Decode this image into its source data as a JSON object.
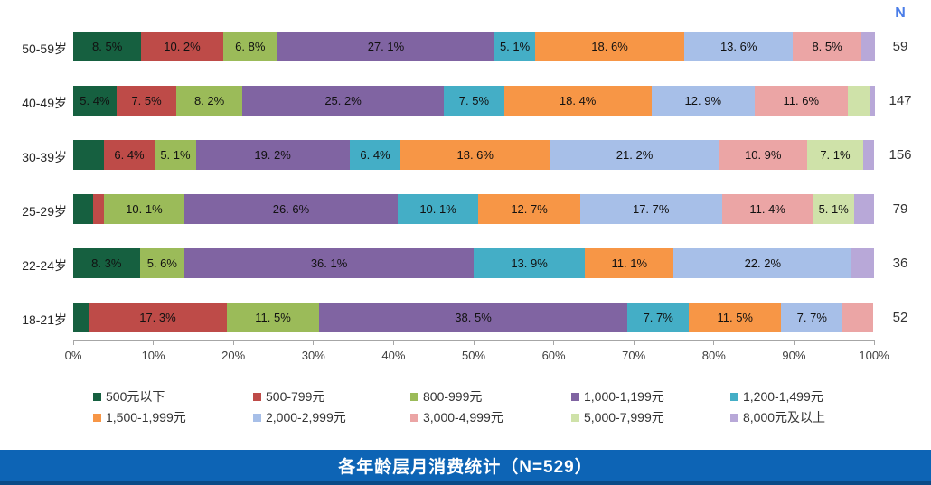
{
  "page": {
    "title": "各年龄层月消费统计（N=529）",
    "n_column_header": "N"
  },
  "chart_data": {
    "type": "bar",
    "orientation": "horizontal-stacked",
    "unit": "%",
    "title": "各年龄层月消费统计（N=529）",
    "categories": [
      "50-59岁",
      "40-49岁",
      "30-39岁",
      "25-29岁",
      "22-24岁",
      "18-21岁"
    ],
    "sample_size_header": "N",
    "sample_sizes": [
      59,
      147,
      156,
      79,
      36,
      52
    ],
    "series": [
      {
        "name": "500元以下",
        "color": "#166040",
        "values": [
          8.5,
          5.4,
          3.8,
          2.5,
          8.3,
          1.9
        ]
      },
      {
        "name": "500-799元",
        "color": "#BE4B48",
        "values": [
          10.2,
          7.5,
          6.4,
          1.3,
          0,
          17.3
        ]
      },
      {
        "name": "800-999元",
        "color": "#9BBB59",
        "values": [
          6.8,
          8.2,
          5.1,
          10.1,
          5.6,
          11.5
        ]
      },
      {
        "name": "1,000-1,199元",
        "color": "#8064A2",
        "values": [
          27.1,
          25.2,
          19.2,
          26.6,
          36.1,
          38.5
        ]
      },
      {
        "name": "1,200-1,499元",
        "color": "#44AEC6",
        "values": [
          5.1,
          7.5,
          6.4,
          10.1,
          13.9,
          7.7
        ]
      },
      {
        "name": "1,500-1,999元",
        "color": "#F79646",
        "values": [
          18.6,
          18.4,
          18.6,
          12.7,
          11.1,
          11.5
        ]
      },
      {
        "name": "2,000-2,999元",
        "color": "#A7BFE8",
        "values": [
          13.6,
          12.9,
          21.2,
          17.7,
          22.2,
          7.7
        ]
      },
      {
        "name": "3,000-4,999元",
        "color": "#EBA5A5",
        "values": [
          8.5,
          11.6,
          10.9,
          11.4,
          0,
          3.8
        ]
      },
      {
        "name": "5,000-7,999元",
        "color": "#CFE2A9",
        "values": [
          0,
          2.7,
          7.1,
          5.1,
          0,
          0
        ]
      },
      {
        "name": "8,000元及以上",
        "color": "#B8A8D8",
        "values": [
          1.7,
          0.7,
          1.3,
          2.5,
          2.8,
          0
        ]
      }
    ],
    "x_ticks": [
      "0%",
      "10%",
      "20%",
      "30%",
      "40%",
      "50%",
      "60%",
      "70%",
      "80%",
      "90%",
      "100%"
    ],
    "xlim": [
      0,
      100
    ],
    "data_label_threshold_pct": 5,
    "grid": false,
    "legend_position": "bottom"
  }
}
